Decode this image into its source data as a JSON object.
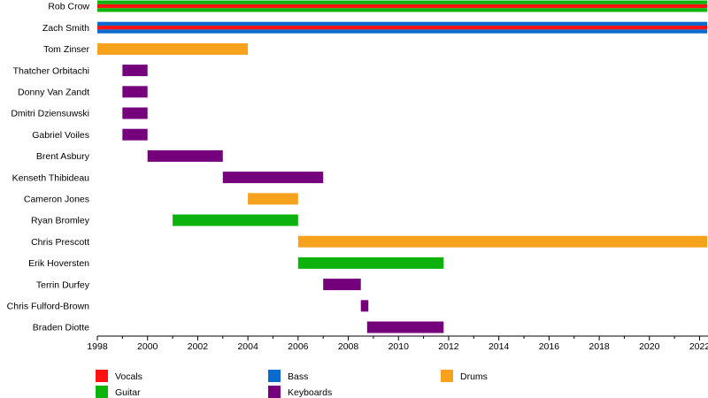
{
  "chart_data": {
    "type": "timeline",
    "x_range": [
      1998,
      2022.3
    ],
    "ticks": [
      1998,
      2000,
      2002,
      2004,
      2006,
      2008,
      2010,
      2012,
      2014,
      2016,
      2018,
      2020,
      2022
    ],
    "grid": false,
    "legend_position": "bottom",
    "roles": [
      {
        "key": "vocals",
        "name": "Vocals",
        "color": "#ff1111"
      },
      {
        "key": "bass",
        "name": "Bass",
        "color": "#0b6acd"
      },
      {
        "key": "drums",
        "name": "Drums",
        "color": "#f7a21c"
      },
      {
        "key": "guitar",
        "name": "Guitar",
        "color": "#0db30c"
      },
      {
        "key": "keyboards",
        "name": "Keyboards",
        "color": "#75007b"
      }
    ],
    "members": [
      {
        "name": "Rob Crow",
        "bars": [
          {
            "start": 1998,
            "end": 2022.3,
            "roles": [
              "guitar",
              "vocals",
              "guitar"
            ]
          }
        ]
      },
      {
        "name": "Zach Smith",
        "bars": [
          {
            "start": 1998,
            "end": 2022.3,
            "roles": [
              "bass",
              "vocals",
              "bass"
            ]
          }
        ]
      },
      {
        "name": "Tom Zinser",
        "bars": [
          {
            "start": 1998,
            "end": 2004,
            "roles": [
              "drums"
            ]
          }
        ]
      },
      {
        "name": "Thatcher Orbitachi",
        "bars": [
          {
            "start": 1999,
            "end": 2000,
            "roles": [
              "keyboards"
            ]
          }
        ]
      },
      {
        "name": "Donny Van Zandt",
        "bars": [
          {
            "start": 1999,
            "end": 2000,
            "roles": [
              "keyboards"
            ]
          }
        ]
      },
      {
        "name": "Dmitri Dziensuwski",
        "bars": [
          {
            "start": 1999,
            "end": 2000,
            "roles": [
              "keyboards"
            ]
          }
        ]
      },
      {
        "name": "Gabriel Voiles",
        "bars": [
          {
            "start": 1999,
            "end": 2000,
            "roles": [
              "keyboards"
            ]
          }
        ]
      },
      {
        "name": "Brent Asbury",
        "bars": [
          {
            "start": 2000,
            "end": 2003,
            "roles": [
              "keyboards"
            ]
          }
        ]
      },
      {
        "name": "Kenseth Thibideau",
        "bars": [
          {
            "start": 2003,
            "end": 2007,
            "roles": [
              "keyboards"
            ]
          }
        ]
      },
      {
        "name": "Cameron Jones",
        "bars": [
          {
            "start": 2004,
            "end": 2006,
            "roles": [
              "drums"
            ]
          }
        ]
      },
      {
        "name": "Ryan Bromley",
        "bars": [
          {
            "start": 2001,
            "end": 2006,
            "roles": [
              "guitar"
            ]
          }
        ]
      },
      {
        "name": "Chris Prescott",
        "bars": [
          {
            "start": 2006,
            "end": 2022.3,
            "roles": [
              "drums"
            ]
          }
        ]
      },
      {
        "name": "Erik Hoversten",
        "bars": [
          {
            "start": 2006,
            "end": 2011.8,
            "roles": [
              "guitar"
            ]
          }
        ]
      },
      {
        "name": "Terrin Durfey",
        "bars": [
          {
            "start": 2007,
            "end": 2008.5,
            "roles": [
              "keyboards"
            ]
          }
        ]
      },
      {
        "name": "Chris Fulford-Brown",
        "bars": [
          {
            "start": 2008.5,
            "end": 2008.8,
            "roles": [
              "keyboards"
            ]
          }
        ]
      },
      {
        "name": "Braden Diotte",
        "bars": [
          {
            "start": 2008.75,
            "end": 2011.8,
            "roles": [
              "keyboards"
            ]
          }
        ]
      }
    ]
  }
}
